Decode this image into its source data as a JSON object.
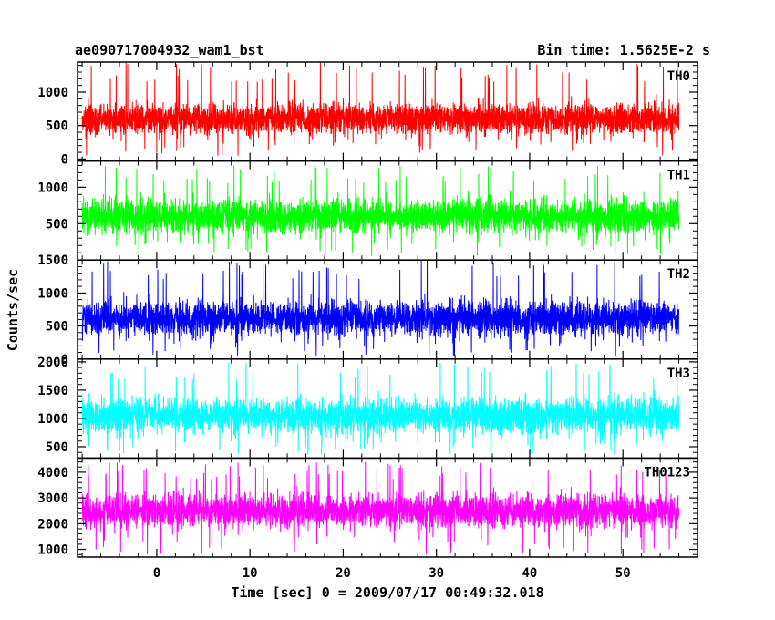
{
  "header": {
    "file_label": "ae090717004932_wam1_bst",
    "bin_time_label": "Bin time: 1.5625E-2 s"
  },
  "chart_data": {
    "type": "line",
    "title": "ae090717004932_wam1_bst",
    "subtitle": "Bin time: 1.5625E-2 s",
    "xlabel": "Time [sec] 0 = 2009/07/17 00:49:32.018",
    "ylabel": "Counts/sec",
    "xlim": [
      -8.5,
      58
    ],
    "x_data_range": [
      -8,
      56
    ],
    "x_ticks": [
      0,
      10,
      20,
      30,
      40,
      50
    ],
    "grid": false,
    "panels": [
      {
        "name": "TH0",
        "color": "#ff0000",
        "ylim": [
          -30,
          1450
        ],
        "y_ticks": [
          0,
          500,
          1000
        ],
        "level_mean": 600,
        "spread": 150,
        "spike_high": 1450,
        "dip_low": 40
      },
      {
        "name": "TH1",
        "color": "#00ff00",
        "ylim": [
          0,
          1360
        ],
        "y_ticks": [
          0,
          500,
          1000
        ],
        "level_mean": 600,
        "spread": 150,
        "spike_high": 1300,
        "dip_low": 50
      },
      {
        "name": "TH2",
        "color": "#0000ff",
        "ylim": [
          0,
          1500
        ],
        "y_ticks": [
          0,
          500,
          1000,
          1500
        ],
        "level_mean": 620,
        "spread": 170,
        "spike_high": 1500,
        "dip_low": 40
      },
      {
        "name": "TH3",
        "color": "#00ffff",
        "ylim": [
          300,
          2050
        ],
        "y_ticks": [
          500,
          1000,
          1500,
          2000
        ],
        "level_mean": 1050,
        "spread": 200,
        "spike_high": 2000,
        "dip_low": 350
      },
      {
        "name": "TH0123",
        "color": "#ff00ff",
        "ylim": [
          700,
          4550
        ],
        "y_ticks": [
          1000,
          2000,
          3000,
          4000
        ],
        "level_mean": 2500,
        "spread": 420,
        "spike_high": 4400,
        "dip_low": 800
      }
    ]
  }
}
